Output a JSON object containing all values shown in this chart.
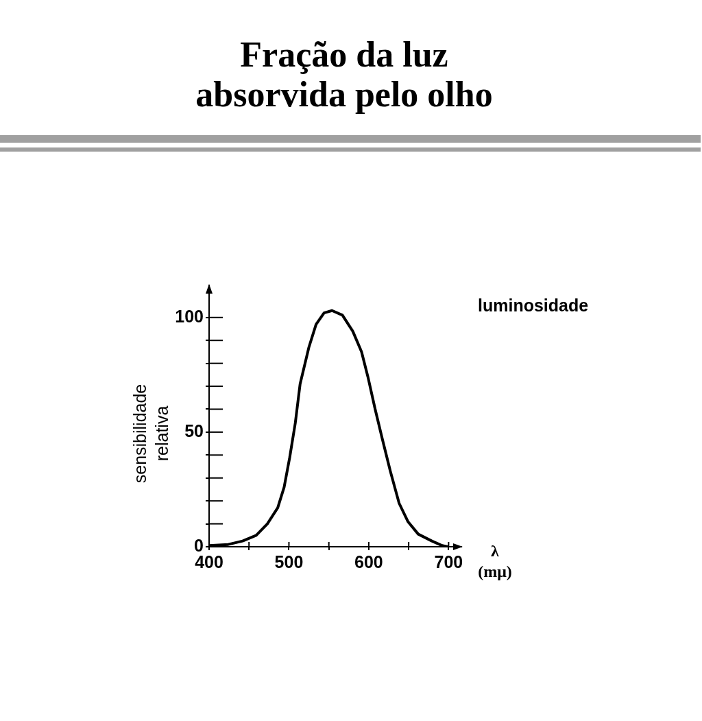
{
  "chart_data": {
    "type": "line",
    "title": "Fração da luz\nabsorvida pelo olho",
    "xlabel": "λ\n(mμ)",
    "ylabel": "sensibilidade\nrelativa",
    "x": [
      400,
      424,
      442,
      459,
      473,
      486,
      494,
      501,
      508,
      514,
      525,
      534,
      544,
      554,
      567,
      580,
      591,
      599,
      608,
      617,
      627,
      638,
      649,
      662,
      679,
      692,
      699
    ],
    "series": [
      {
        "name": "luminosidade",
        "color": "#000000",
        "values": [
          0.5,
          1,
          2.5,
          5,
          10,
          17,
          26,
          39,
          54,
          71,
          87,
          97,
          102,
          103,
          101,
          94,
          85,
          74,
          60,
          47,
          33,
          19,
          11,
          5.5,
          2.5,
          0.5,
          0
        ]
      }
    ],
    "xlim": [
      400,
      716
    ],
    "ylim": [
      0,
      114
    ],
    "xticks": [
      400,
      {
        "value": 450,
        "label": null
      },
      500,
      {
        "value": 550,
        "label": null
      },
      600,
      {
        "value": 650,
        "label": null
      },
      700
    ],
    "yticks": [
      0,
      {
        "value": 10,
        "label": null
      },
      {
        "value": 20,
        "label": null
      },
      {
        "value": 30,
        "label": null
      },
      {
        "value": 40,
        "label": null
      },
      50,
      {
        "value": 60,
        "label": null
      },
      {
        "value": 70,
        "label": null
      },
      {
        "value": 80,
        "label": null
      },
      {
        "value": 90,
        "label": null
      },
      100
    ]
  }
}
